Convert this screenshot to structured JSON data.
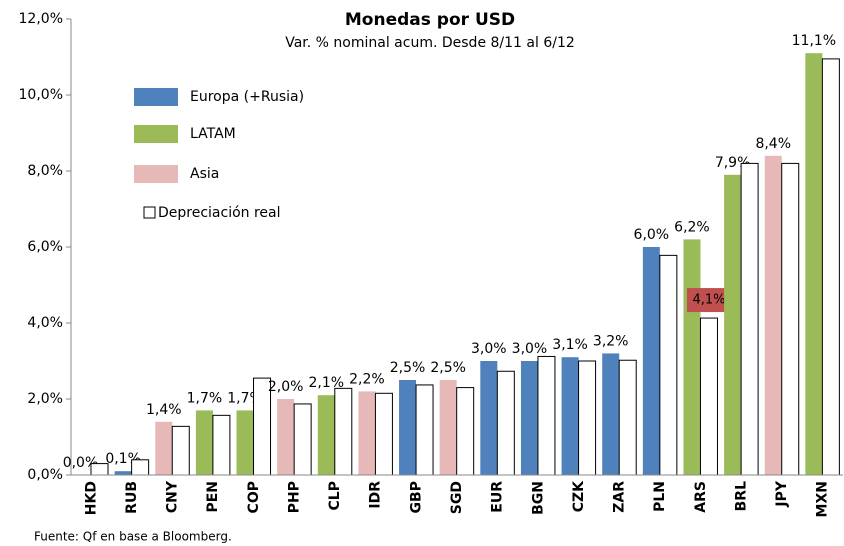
{
  "chart_data": {
    "type": "bar",
    "title": "Monedas por USD",
    "subtitle": "Var. % nominal acum. Desde 8/11 al 6/12",
    "source": "Fuente: Qf en base a Bloomberg.",
    "categories": [
      "HKD",
      "RUB",
      "CNY",
      "PEN",
      "COP",
      "PHP",
      "CLP",
      "IDR",
      "GBP",
      "SGD",
      "EUR",
      "BGN",
      "CZK",
      "ZAR",
      "PLN",
      "ARS",
      "BRL",
      "JPY",
      "MXN"
    ],
    "series": [
      {
        "name": "Europa (+Rusia)",
        "color": "#4f81bd",
        "values": [
          null,
          0.1,
          null,
          null,
          null,
          null,
          null,
          null,
          2.5,
          null,
          3.0,
          3.0,
          3.1,
          3.2,
          6.0,
          null,
          null,
          null,
          null
        ],
        "value_labels": [
          null,
          "0,1%",
          null,
          null,
          null,
          null,
          null,
          null,
          "2,5%",
          null,
          "3,0%",
          "3,0%",
          "3,1%",
          "3,2%",
          "6,0%",
          null,
          null,
          null,
          null
        ]
      },
      {
        "name": "LATAM",
        "color": "#9bbb59",
        "values": [
          null,
          null,
          null,
          1.7,
          1.7,
          null,
          2.1,
          null,
          null,
          null,
          null,
          null,
          null,
          null,
          null,
          6.2,
          7.9,
          null,
          11.1
        ],
        "value_labels": [
          null,
          null,
          null,
          "1,7%",
          "1,7%",
          null,
          "2,1%",
          null,
          null,
          null,
          null,
          null,
          null,
          null,
          null,
          "6,2%",
          "7,9%",
          null,
          "11,1%"
        ]
      },
      {
        "name": "Asia",
        "color": "#e6b9b8",
        "values": [
          0.0,
          null,
          1.4,
          null,
          null,
          2.0,
          null,
          2.2,
          null,
          2.5,
          null,
          null,
          null,
          null,
          null,
          null,
          null,
          8.4,
          null
        ],
        "value_labels": [
          "0,0%",
          null,
          "1,4%",
          null,
          null,
          "2,0%",
          null,
          "2,2%",
          null,
          "2,5%",
          null,
          null,
          null,
          null,
          null,
          null,
          null,
          "8,4%",
          null
        ]
      },
      {
        "name": "Depreciación real",
        "color": "#ffffff",
        "values": [
          0.3,
          0.4,
          1.28,
          1.57,
          2.55,
          1.87,
          2.28,
          2.15,
          2.37,
          2.3,
          2.73,
          3.12,
          3.0,
          3.02,
          5.78,
          4.13,
          8.2,
          8.2,
          10.95
        ],
        "value_labels": [
          null,
          null,
          null,
          null,
          null,
          null,
          null,
          null,
          null,
          null,
          null,
          null,
          null,
          null,
          null,
          "4,1%",
          null,
          null,
          null
        ]
      }
    ],
    "ylim": [
      0,
      12
    ],
    "yticks": [
      {
        "value": 0,
        "label": "0,0%"
      },
      {
        "value": 2,
        "label": "2,0%"
      },
      {
        "value": 4,
        "label": "4,0%"
      },
      {
        "value": 6,
        "label": "6,0%"
      },
      {
        "value": 8,
        "label": "8,0%"
      },
      {
        "value": 10,
        "label": "10,0%"
      },
      {
        "value": 12,
        "label": "12,0%"
      }
    ]
  }
}
